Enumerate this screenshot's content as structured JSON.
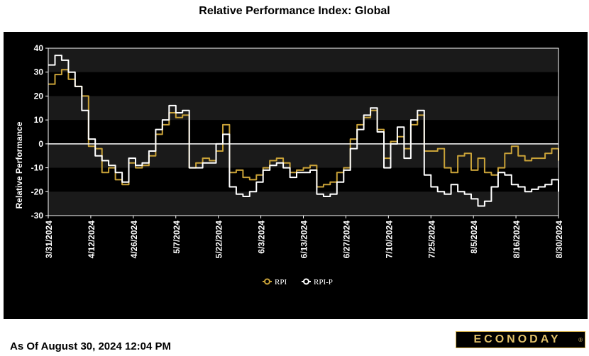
{
  "title": "Relative Performance Index: Global",
  "as_of": "As Of August 30, 2024 12:04 PM",
  "brand": {
    "name": "ECONODAY",
    "mark": "®"
  },
  "colors": {
    "rpi": "#c9a238",
    "rpi_p": "#ffffff",
    "background": "#000000",
    "band": "#1a1a1a",
    "brand": "#e1c16a"
  },
  "chart_data": {
    "type": "line",
    "title": "Relative Performance Index: Global",
    "ylabel": "Relative Performance",
    "xlabel": "",
    "ylim": [
      -30,
      40
    ],
    "yticks": [
      40,
      30,
      20,
      10,
      0,
      -10,
      -20,
      -30
    ],
    "x_tick_labels": [
      "3/31/2024",
      "4/12/2024",
      "4/26/2024",
      "5/7/2024",
      "5/22/2024",
      "6/3/2024",
      "6/13/2024",
      "6/27/2024",
      "7/10/2024",
      "7/25/2024",
      "8/5/2024",
      "8/16/2024",
      "8/30/2024"
    ],
    "legend": {
      "placement": "bottom-center",
      "entries": [
        "RPI",
        "RPI-P"
      ]
    },
    "grid": "alternating horizontal bands",
    "x": [
      "3/31/2024",
      "4/2/2024",
      "4/4/2024",
      "4/6/2024",
      "4/8/2024",
      "4/10/2024",
      "4/12/2024",
      "4/14/2024",
      "4/16/2024",
      "4/18/2024",
      "4/20/2024",
      "4/22/2024",
      "4/24/2024",
      "4/26/2024",
      "4/28/2024",
      "4/30/2024",
      "5/2/2024",
      "5/4/2024",
      "5/6/2024",
      "5/8/2024",
      "5/10/2024",
      "5/12/2024",
      "5/14/2024",
      "5/16/2024",
      "5/18/2024",
      "5/20/2024",
      "5/22/2024",
      "5/24/2024",
      "5/26/2024",
      "5/28/2024",
      "5/30/2024",
      "6/1/2024",
      "6/3/2024",
      "6/5/2024",
      "6/7/2024",
      "6/9/2024",
      "6/11/2024",
      "6/13/2024",
      "6/15/2024",
      "6/17/2024",
      "6/19/2024",
      "6/21/2024",
      "6/23/2024",
      "6/25/2024",
      "6/27/2024",
      "6/29/2024",
      "7/1/2024",
      "7/3/2024",
      "7/5/2024",
      "7/7/2024",
      "7/9/2024",
      "7/11/2024",
      "7/13/2024",
      "7/15/2024",
      "7/17/2024",
      "7/19/2024",
      "7/21/2024",
      "7/23/2024",
      "7/25/2024",
      "7/27/2024",
      "7/29/2024",
      "7/31/2024",
      "8/2/2024",
      "8/4/2024",
      "8/6/2024",
      "8/8/2024",
      "8/10/2024",
      "8/12/2024",
      "8/14/2024",
      "8/16/2024",
      "8/18/2024",
      "8/20/2024",
      "8/22/2024",
      "8/24/2024",
      "8/26/2024",
      "8/28/2024",
      "8/30/2024"
    ],
    "series": [
      {
        "name": "RPI",
        "values": [
          25,
          29,
          31,
          27,
          24,
          20,
          -1,
          -2,
          -12,
          -10,
          -15,
          -17,
          -8,
          -10,
          -9,
          -5,
          4,
          8,
          13,
          11,
          12,
          -10,
          -8,
          -6,
          -7,
          -3,
          8,
          -12,
          -11,
          -14,
          -15,
          -13,
          -10,
          -7,
          -6,
          -8,
          -12,
          -11,
          -10,
          -9,
          -18,
          -17,
          -16,
          -12,
          -10,
          2,
          8,
          11,
          14,
          6,
          -6,
          1,
          3,
          -2,
          8,
          12,
          -3,
          -3,
          -2,
          -10,
          -12,
          -5,
          -4,
          -11,
          -6,
          -12,
          -13,
          -10,
          -4,
          -1,
          -5,
          -7,
          -6,
          -6,
          -4,
          -2,
          -7
        ]
      },
      {
        "name": "RPI-P",
        "values": [
          33,
          37,
          35,
          30,
          24,
          14,
          2,
          -5,
          -7,
          -9,
          -12,
          -16,
          -6,
          -9,
          -8,
          -3,
          6,
          10,
          16,
          13,
          14,
          -10,
          -10,
          -8,
          -8,
          0,
          4,
          -18,
          -21,
          -22,
          -20,
          -16,
          -11,
          -9,
          -8,
          -10,
          -14,
          -12,
          -12,
          -11,
          -21,
          -22,
          -21,
          -16,
          -11,
          -2,
          6,
          12,
          15,
          5,
          -10,
          0,
          7,
          -6,
          10,
          14,
          -13,
          -18,
          -20,
          -21,
          -17,
          -20,
          -21,
          -23,
          -26,
          -24,
          -18,
          -12,
          -13,
          -17,
          -18,
          -20,
          -19,
          -18,
          -17,
          -15,
          -20
        ]
      }
    ]
  }
}
